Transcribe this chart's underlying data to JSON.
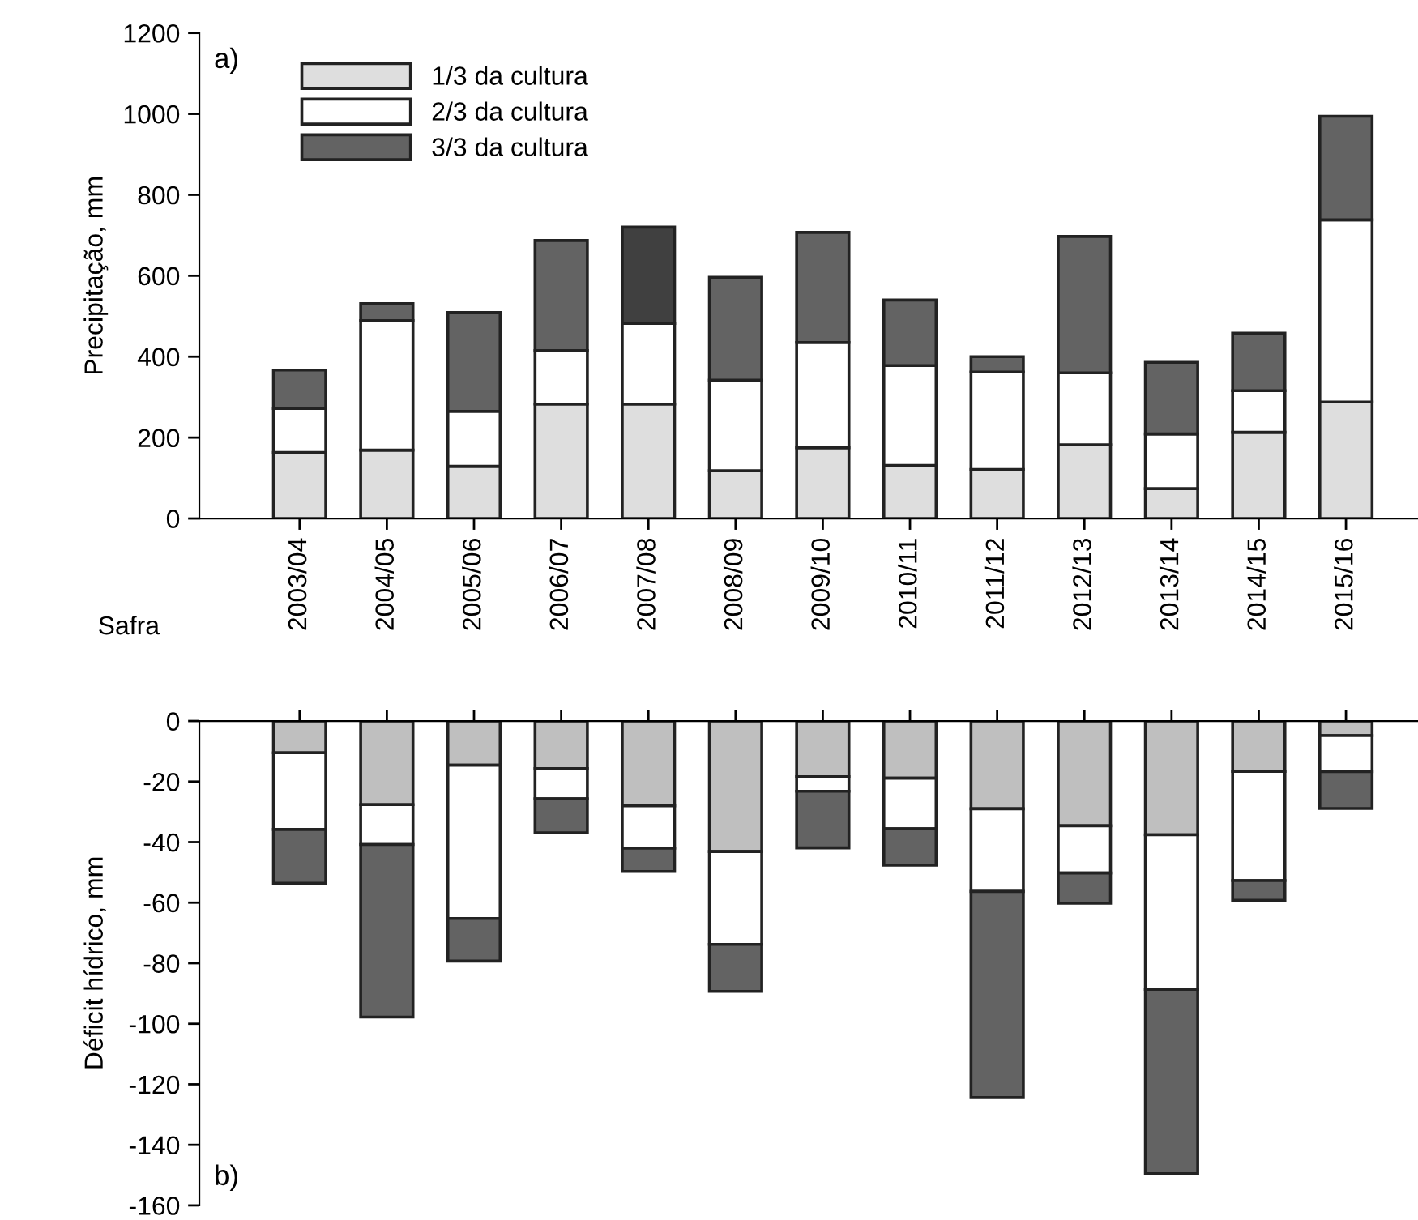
{
  "chart_data": [
    {
      "type": "bar",
      "stacked": true,
      "ylabel": "Precipitação, mm",
      "xlabel": "Safra",
      "categories": [
        "2003/04",
        "2004/05",
        "2005/06",
        "2006/07",
        "2007/08",
        "2008/09",
        "2009/10",
        "2010/11",
        "2011/12",
        "2012/13",
        "2013/14",
        "2014/15",
        "2015/16"
      ],
      "ylim": [
        0,
        1200
      ],
      "yticks": [
        0,
        200,
        400,
        600,
        800,
        1000,
        1200
      ],
      "legend": "top left",
      "grid": false,
      "annotations": [
        "a)"
      ],
      "series": [
        {
          "name": "1/3 da cultura",
          "color": "#dedede",
          "values": [
            163,
            169,
            129,
            283,
            283,
            118,
            175,
            131,
            121,
            182,
            74,
            213,
            288
          ]
        },
        {
          "name": "2/3 da cultura",
          "color": "#ffffff",
          "values": [
            109,
            320,
            136,
            132,
            199,
            224,
            260,
            247,
            241,
            178,
            135,
            103,
            450
          ]
        },
        {
          "name": "3/3 da cultura",
          "color": "#636363",
          "colors": [
            "#636363",
            "#636363",
            "#636363",
            "#636363",
            "#404040",
            "#636363",
            "#636363",
            "#636363",
            "#636363",
            "#636363",
            "#636363",
            "#636363",
            "#636363"
          ],
          "values": [
            95,
            42,
            244,
            272,
            238,
            254,
            272,
            162,
            38,
            337,
            177,
            142,
            256
          ]
        }
      ]
    },
    {
      "type": "bar",
      "stacked": true,
      "ylabel": "Déficit hídrico, mm",
      "tick_labels": "y",
      "categories": [
        "2003/04",
        "2004/05",
        "2005/06",
        "2006/07",
        "2007/08",
        "2008/09",
        "2009/10",
        "2010/11",
        "2011/12",
        "2012/13",
        "2013/14",
        "2014/15",
        "2015/16"
      ],
      "ylim": [
        -160,
        0
      ],
      "yticks": [
        -160,
        -140,
        -120,
        -100,
        -80,
        -60,
        -40,
        -20,
        0
      ],
      "grid": false,
      "annotations": [
        "b)"
      ],
      "series": [
        {
          "color": "#bfbfbf",
          "values": [
            -10.5,
            -27.6,
            -14.6,
            -15.7,
            -28.0,
            -43.1,
            -18.4,
            -18.9,
            -29.0,
            -34.6,
            -37.6,
            -16.6,
            -4.8
          ]
        },
        {
          "color": "#ffffff",
          "values": [
            -25.3,
            -13.2,
            -50.6,
            -10.0,
            -14.0,
            -30.7,
            -4.8,
            -16.7,
            -27.3,
            -15.6,
            -51.0,
            -36.1,
            -11.9
          ]
        },
        {
          "color": "#636363",
          "values": [
            -17.8,
            -57.0,
            -14.1,
            -11.2,
            -7.7,
            -15.5,
            -18.7,
            -12.0,
            -68.1,
            -10.0,
            -60.9,
            -6.5,
            -12.2
          ]
        }
      ]
    }
  ]
}
